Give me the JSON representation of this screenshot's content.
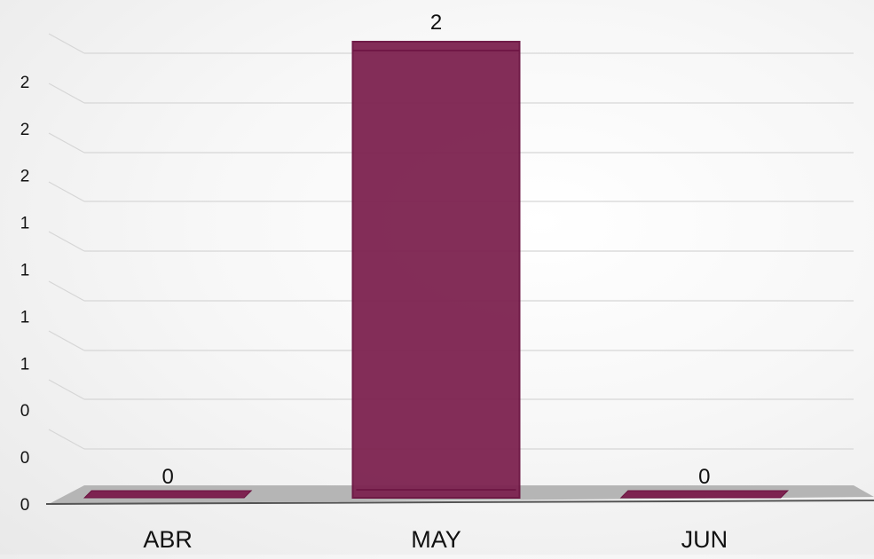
{
  "chart_data": {
    "type": "bar",
    "categories": [
      "ABR",
      "MAY",
      "JUN"
    ],
    "values": [
      0,
      2,
      0
    ],
    "data_labels": [
      "0",
      "2",
      "0"
    ],
    "y_tick_labels": [
      "0",
      "0",
      "0",
      "1",
      "1",
      "1",
      "1",
      "2",
      "2",
      "2"
    ],
    "ylim": [
      0,
      2
    ],
    "grid": true,
    "style": "3d",
    "legend": "none",
    "title": "",
    "xlabel": "",
    "ylabel": "",
    "colors": {
      "bar": "#7d2350",
      "bar_edge": "#6a1240",
      "floor": "#b5b5b5",
      "grid": "#d6d6d6"
    }
  }
}
